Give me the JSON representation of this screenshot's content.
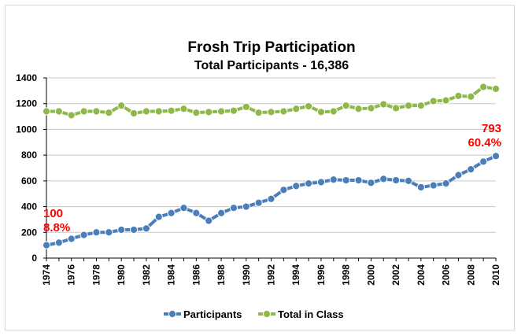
{
  "chart_data": {
    "type": "line",
    "title": "Frosh Trip Participation",
    "subtitle": "Total Participants - 16,386",
    "xlabel": "",
    "ylabel": "",
    "ylim": [
      0,
      1400
    ],
    "yticks": [
      "0",
      "200",
      "400",
      "600",
      "800",
      "1000",
      "1200",
      "1400"
    ],
    "xticks": [
      "1974",
      "1976",
      "1978",
      "1980",
      "1982",
      "1984",
      "1986",
      "1988",
      "1990",
      "1992",
      "1994",
      "1996",
      "1998",
      "2000",
      "2002",
      "2004",
      "2006",
      "2008",
      "2010"
    ],
    "x": [
      1974,
      1975,
      1976,
      1977,
      1978,
      1979,
      1980,
      1981,
      1982,
      1983,
      1984,
      1985,
      1986,
      1987,
      1988,
      1989,
      1990,
      1991,
      1992,
      1993,
      1994,
      1995,
      1996,
      1997,
      1998,
      1999,
      2000,
      2001,
      2002,
      2003,
      2004,
      2005,
      2006,
      2007,
      2008,
      2009,
      2010
    ],
    "grid": "horizontal",
    "legend_position": "bottom",
    "series": [
      {
        "name": "Participants",
        "color": "#4a7ebb",
        "values": [
          100,
          120,
          150,
          180,
          200,
          200,
          220,
          220,
          230,
          320,
          350,
          390,
          350,
          290,
          350,
          390,
          400,
          430,
          460,
          530,
          560,
          580,
          590,
          610,
          605,
          605,
          585,
          615,
          605,
          600,
          550,
          565,
          580,
          645,
          690,
          750,
          793
        ]
      },
      {
        "name": "Total in Class",
        "color": "#8fb84a",
        "values": [
          1140,
          1140,
          1110,
          1140,
          1140,
          1130,
          1185,
          1125,
          1140,
          1140,
          1145,
          1160,
          1130,
          1135,
          1140,
          1145,
          1175,
          1130,
          1135,
          1140,
          1160,
          1180,
          1135,
          1140,
          1185,
          1160,
          1165,
          1195,
          1165,
          1185,
          1185,
          1220,
          1225,
          1260,
          1255,
          1330,
          1315
        ]
      }
    ],
    "annotations": [
      {
        "lines": [
          "100",
          "8.8%"
        ],
        "color": "#ff0000",
        "at": "start"
      },
      {
        "lines": [
          "793",
          "60.4%"
        ],
        "color": "#ff0000",
        "at": "end"
      }
    ]
  }
}
